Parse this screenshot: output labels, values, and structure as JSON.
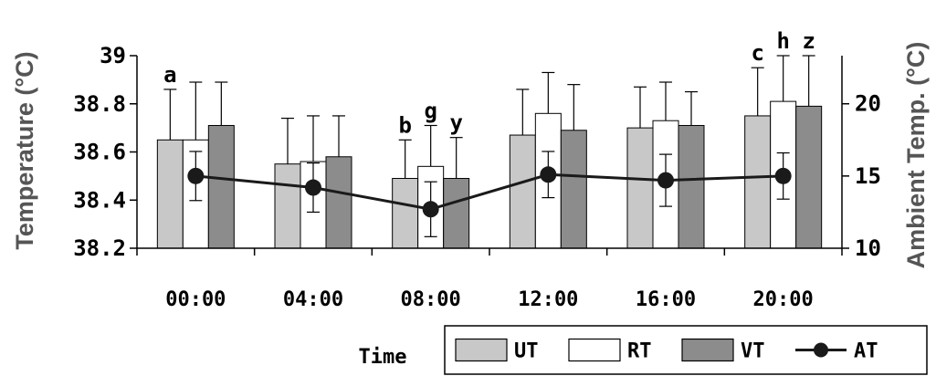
{
  "chart_data": {
    "type": "bar",
    "xlabel": "Time",
    "ylabel": "Temperature (°C)",
    "y2label": "Ambient Temp. (°C)",
    "categories": [
      "00:00",
      "04:00",
      "08:00",
      "12:00",
      "16:00",
      "20:00"
    ],
    "ylim": [
      38.2,
      39.0
    ],
    "yticks": [
      "38.2",
      "38.4",
      "38.6",
      "38.8",
      "39"
    ],
    "y2lim": [
      10,
      23.33
    ],
    "y2ticks": [
      "10",
      "15",
      "20"
    ],
    "legend_position": "bottom-right",
    "series": [
      {
        "name": "UT",
        "kind": "bar",
        "color": "#c8c8c8",
        "values": [
          38.65,
          38.55,
          38.49,
          38.67,
          38.7,
          38.75
        ],
        "error": [
          0.21,
          0.19,
          0.16,
          0.19,
          0.17,
          0.2
        ]
      },
      {
        "name": "RT",
        "kind": "bar",
        "color": "#ffffff",
        "values": [
          38.65,
          38.56,
          38.54,
          38.76,
          38.73,
          38.81
        ],
        "error": [
          0.24,
          0.19,
          0.17,
          0.17,
          0.16,
          0.19
        ]
      },
      {
        "name": "VT",
        "kind": "bar",
        "color": "#8c8c8c",
        "values": [
          38.71,
          38.58,
          38.49,
          38.69,
          38.71,
          38.79
        ],
        "error": [
          0.18,
          0.17,
          0.17,
          0.19,
          0.14,
          0.21
        ]
      },
      {
        "name": "AT",
        "kind": "line",
        "color": "#1a1a1a",
        "values": [
          15.0,
          14.2,
          12.7,
          15.1,
          14.7,
          15.0
        ],
        "error": [
          1.7,
          1.7,
          1.9,
          1.6,
          1.8,
          1.6
        ]
      }
    ],
    "annotations": [
      {
        "text": "a",
        "category": "00:00",
        "series": "UT"
      },
      {
        "text": "b",
        "category": "08:00",
        "series": "UT"
      },
      {
        "text": "g",
        "category": "08:00",
        "series": "RT"
      },
      {
        "text": "y",
        "category": "08:00",
        "series": "VT"
      },
      {
        "text": "c",
        "category": "20:00",
        "series": "UT"
      },
      {
        "text": "h",
        "category": "20:00",
        "series": "RT"
      },
      {
        "text": "z",
        "category": "20:00",
        "series": "VT"
      }
    ]
  }
}
